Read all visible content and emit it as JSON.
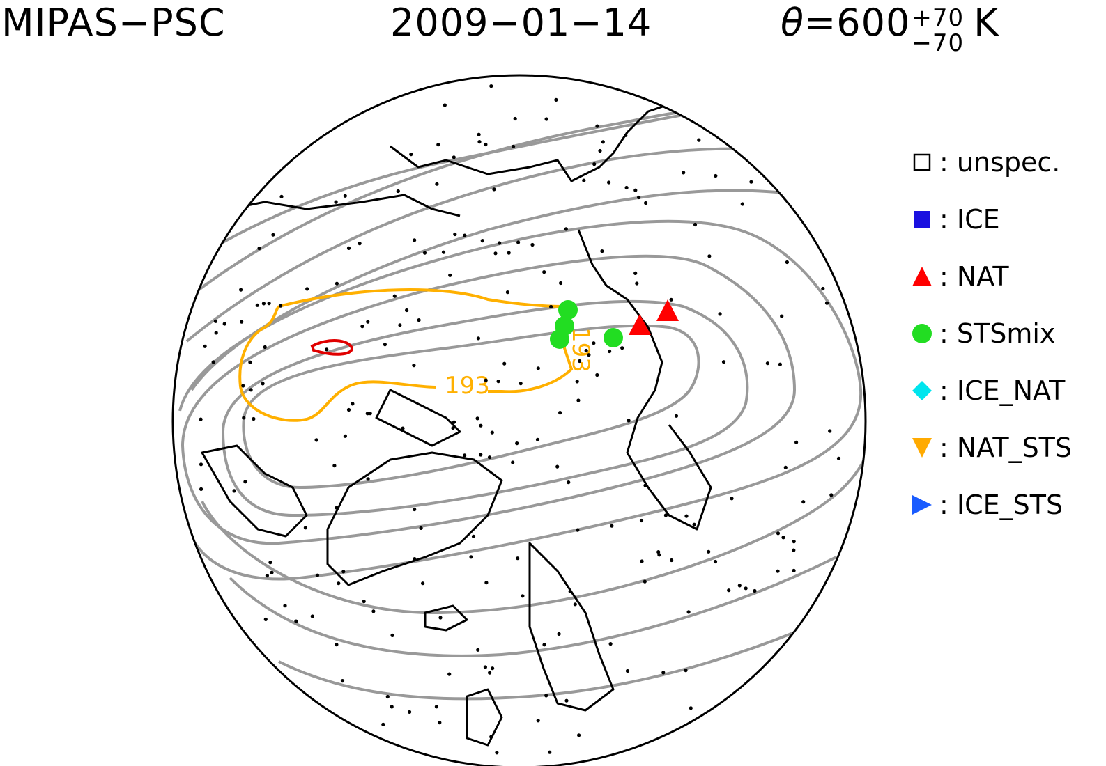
{
  "header": {
    "instrument": "MIPAS−PSC",
    "date": "2009−01−14",
    "theta_symbol": "θ",
    "theta_value": "=600",
    "theta_plus": "+70",
    "theta_minus": "−70",
    "unit": "K"
  },
  "legend": [
    {
      "shape": "square-open",
      "color": "#000000",
      "label": ": unspec."
    },
    {
      "shape": "square",
      "color": "#1a10e0",
      "label": ": ICE"
    },
    {
      "shape": "triangle-up",
      "color": "#ff0000",
      "label": ": NAT"
    },
    {
      "shape": "circle",
      "color": "#22dd22",
      "label": ": STSmix"
    },
    {
      "shape": "diamond",
      "color": "#00e5ee",
      "label": ": ICE_NAT"
    },
    {
      "shape": "triangle-down",
      "color": "#ffaa00",
      "label": ": NAT_STS"
    },
    {
      "shape": "triangle-right",
      "color": "#1a5cff",
      "label": ": ICE_STS"
    }
  ],
  "map": {
    "projection": "polar-stereographic-north",
    "contour_label_1": "193",
    "contour_label_2": "193",
    "colors": {
      "coast": "#000000",
      "geopotential_contours": "#999999",
      "temperature_contour": "#ffb000",
      "nat_region": "#e00000",
      "stsmix": "#22dd22",
      "nat": "#ff0000",
      "unspec": "#000000"
    }
  }
}
